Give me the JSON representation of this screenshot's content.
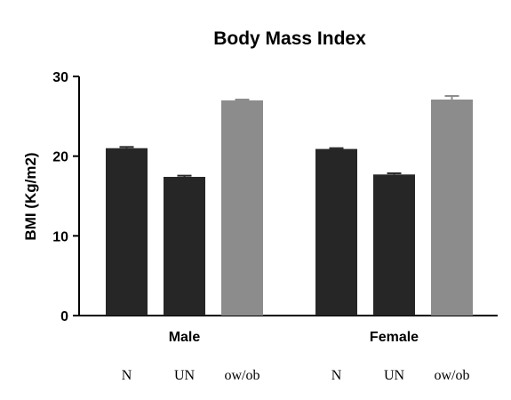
{
  "chart_data": {
    "type": "bar",
    "title": "Body Mass Index",
    "ylabel": "BMI (Kg/m2)",
    "xlabel": "",
    "ylim": [
      0,
      30
    ],
    "yticks": [
      0,
      10,
      20,
      30
    ],
    "groups": [
      "Male",
      "Female"
    ],
    "categories": [
      "N",
      "UN",
      "ow/ob"
    ],
    "colors": [
      "#262626",
      "#262626",
      "#8c8c8c"
    ],
    "series": [
      {
        "group": "Male",
        "values": [
          21.0,
          17.4,
          27.0
        ],
        "errors": [
          0.15,
          0.15,
          0.1
        ]
      },
      {
        "group": "Female",
        "values": [
          20.9,
          17.7,
          27.1
        ],
        "errors": [
          0.1,
          0.15,
          0.45
        ]
      }
    ]
  }
}
